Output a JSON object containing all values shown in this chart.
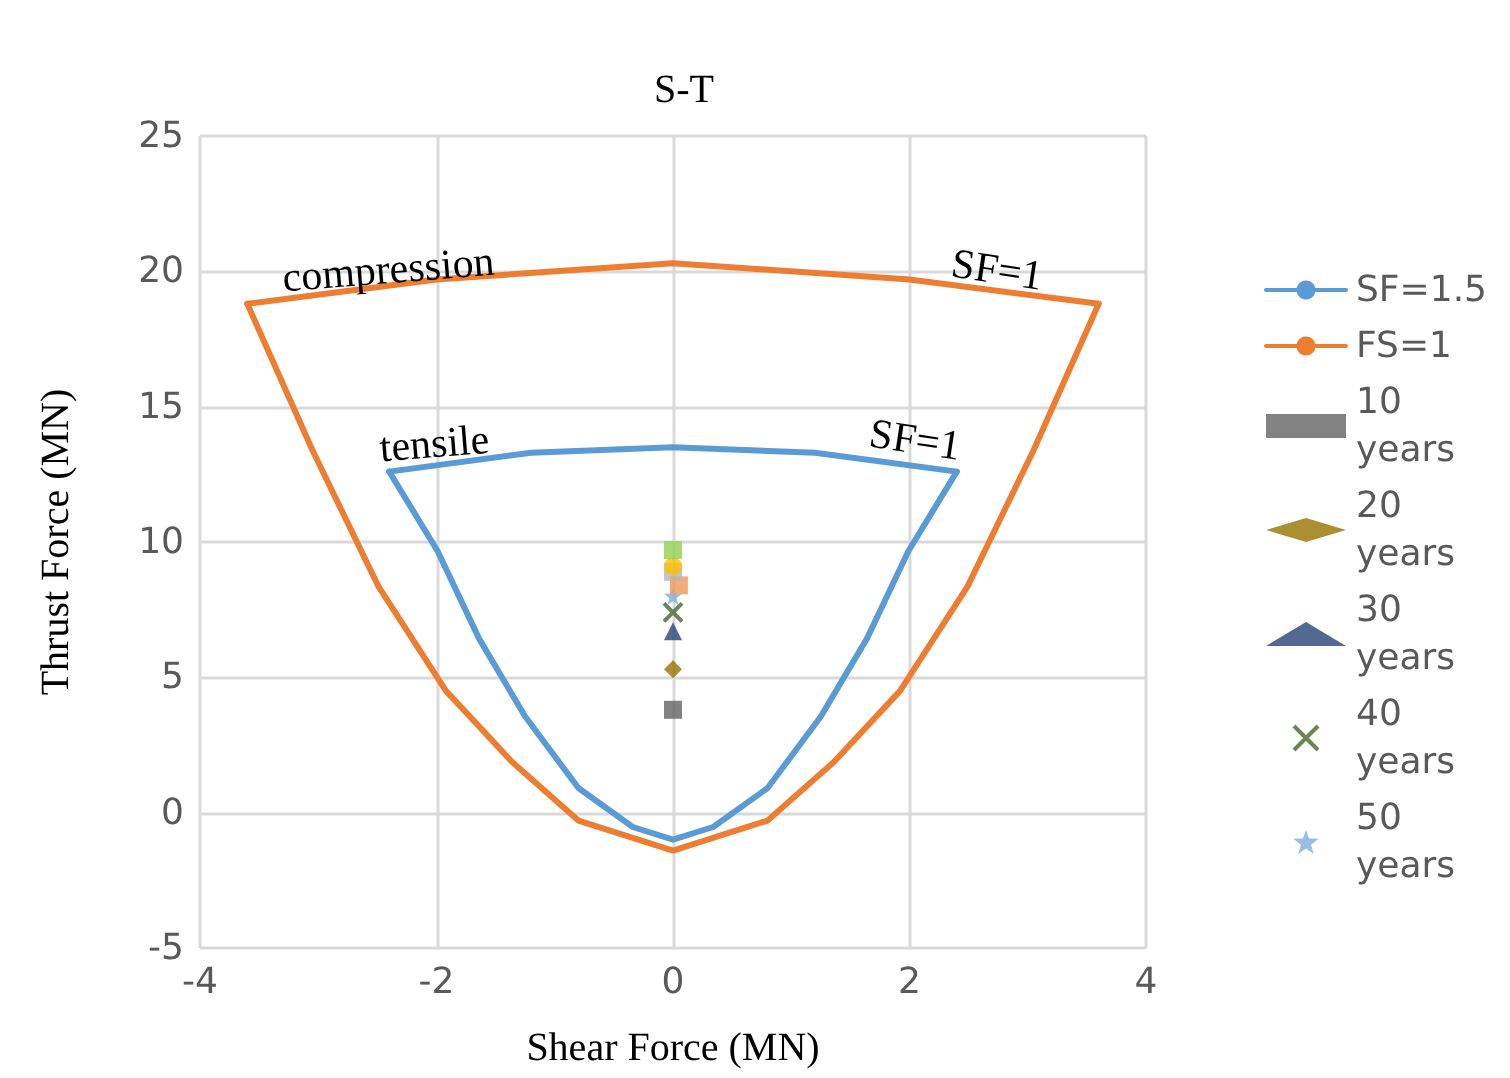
{
  "chart_data": {
    "type": "line",
    "title": "S-T",
    "xlabel": "Shear Force (MN)",
    "ylabel": "Thrust Force (MN)",
    "xlim": [
      -4,
      4
    ],
    "xticks": [
      -4,
      -2,
      0,
      2,
      4
    ],
    "ylim": [
      -5,
      25
    ],
    "yticks": [
      -5,
      0,
      5,
      10,
      15,
      20,
      25
    ],
    "grid": true,
    "legend": "right",
    "marker": "none",
    "line_style": "solid",
    "series": [
      {
        "name": "SF=1.5",
        "color": "#5b9bd5",
        "x": [
          -2.4,
          -1.2,
          0,
          1.2,
          2.4
        ],
        "values": [
          12.6,
          13.3,
          13.5,
          13.3,
          12.6
        ]
      },
      {
        "name": "FS=1",
        "color": "#ed7d31",
        "x": [
          -3.6,
          -2,
          0,
          2,
          3.6
        ],
        "values": [
          18.8,
          19.7,
          20.3,
          19.7,
          18.8
        ]
      },
      {
        "color": "#5b9bd5",
        "x": [
          -2.4,
          -1.99,
          -1.64,
          -1.25,
          -0.8,
          -0.34,
          0,
          0.34,
          0.8,
          1.25,
          1.64,
          1.99,
          2.4
        ],
        "values": [
          12.6,
          9.66,
          6.43,
          3.55,
          0.91,
          -0.53,
          -1.0,
          -0.53,
          0.91,
          3.55,
          6.43,
          9.66,
          12.6
        ]
      },
      {
        "color": "#ed7d31",
        "x": [
          -3.6,
          -3.05,
          -2.49,
          -1.92,
          -1.36,
          -0.8,
          0,
          0.8,
          1.36,
          1.92,
          2.49,
          3.05,
          3.6
        ],
        "values": [
          18.8,
          13.4,
          8.35,
          4.5,
          1.87,
          -0.29,
          -1.4,
          -0.29,
          1.87,
          4.5,
          8.35,
          13.4,
          18.8
        ]
      },
      {
        "name": "10 years",
        "type": "scatter",
        "marker": "square",
        "color": "#636363",
        "x": [
          0
        ],
        "values": [
          3.8
        ]
      },
      {
        "name": "20 years",
        "type": "scatter",
        "marker": "diamond",
        "color": "#997300",
        "x": [
          0
        ],
        "values": [
          5.3
        ]
      },
      {
        "name": "30 years",
        "type": "scatter",
        "marker": "triangle",
        "color": "#264478",
        "x": [
          0
        ],
        "values": [
          6.7
        ]
      },
      {
        "name": "40 years",
        "type": "scatter",
        "marker": "cross",
        "color": "#43682b",
        "x": [
          0
        ],
        "values": [
          7.4
        ]
      },
      {
        "name": "50 years",
        "type": "scatter",
        "marker": "star",
        "color": "#7cafdd",
        "x": [
          0
        ],
        "values": [
          8.0
        ]
      },
      {
        "type": "scatter",
        "marker": "square",
        "color": "#f1975a",
        "x": [
          0.05
        ],
        "values": [
          8.4
        ]
      },
      {
        "type": "scatter",
        "marker": "square",
        "color": "#b7b7b7",
        "x": [
          0
        ],
        "values": [
          8.9
        ]
      },
      {
        "type": "scatter",
        "marker": "circle",
        "color": "#ffc000",
        "x": [
          0
        ],
        "values": [
          9.1
        ]
      },
      {
        "type": "scatter",
        "marker": "square",
        "color": "#92d050",
        "x": [
          0
        ],
        "values": [
          9.7
        ]
      }
    ],
    "annotations": [
      "compression",
      "tensile",
      "SF=1",
      "SF=1"
    ]
  }
}
